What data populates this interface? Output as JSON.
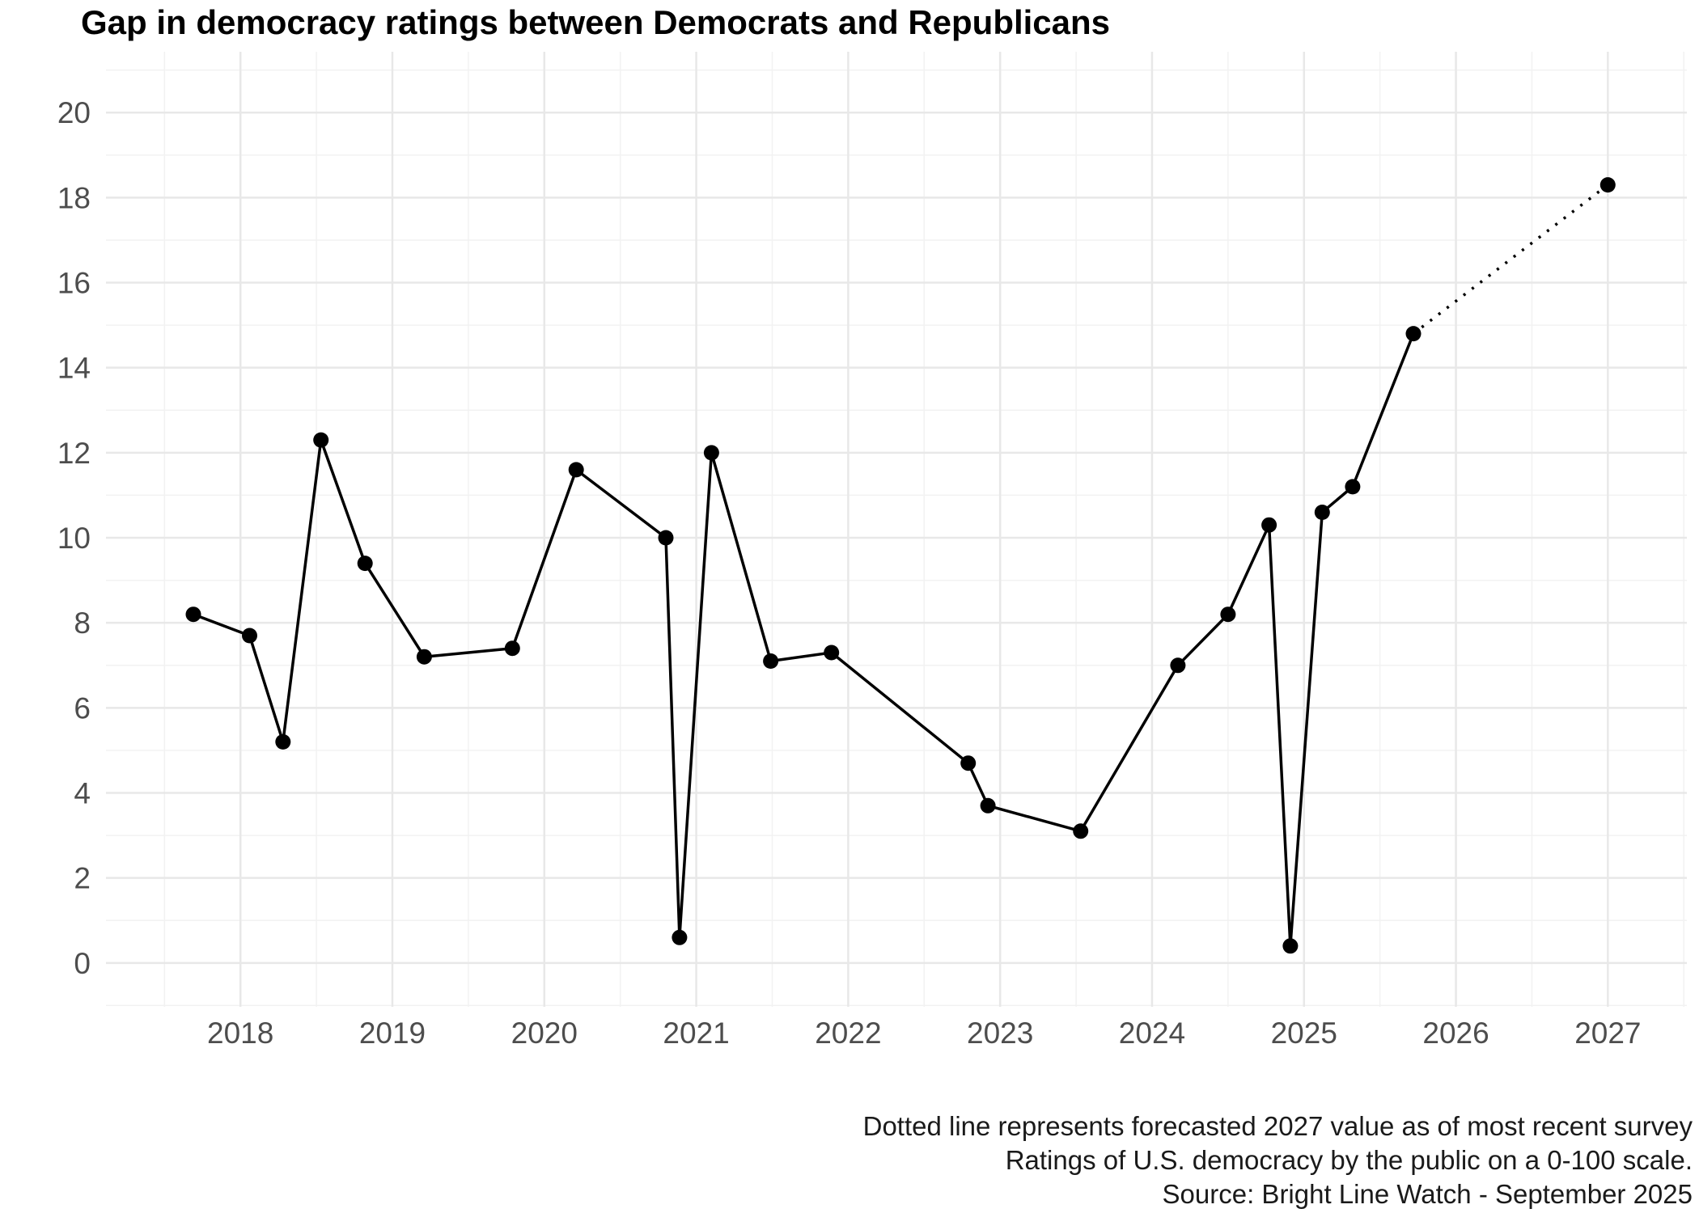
{
  "title": "Gap in democracy ratings between Democrats and Republicans",
  "caption": {
    "lines": [
      "Dotted line represents forecasted 2027 value as of most recent survey",
      "Ratings of U.S. democracy by the public on a 0-100 scale.",
      "Source: Bright Line Watch - September 2025"
    ]
  },
  "colors": {
    "background": "#ffffff",
    "line": "#000000",
    "point": "#000000",
    "grid_major": "#e8e8e8",
    "grid_minor": "#f2f2f2",
    "axis_text": "#4d4d4d",
    "title_text": "#000000",
    "caption_text": "#1a1a1a"
  },
  "chart_data": {
    "type": "line",
    "title": "Gap in democracy ratings between Democrats and Republicans",
    "xlabel": "",
    "ylabel": "",
    "x_domain": [
      2017.115,
      2027.52
    ],
    "y_domain": [
      -1.03,
      21.43
    ],
    "x_ticks": [
      2018,
      2019,
      2020,
      2021,
      2022,
      2023,
      2024,
      2025,
      2026,
      2027
    ],
    "y_ticks": [
      0,
      2,
      4,
      6,
      8,
      10,
      12,
      14,
      16,
      18,
      20
    ],
    "grid": "major-and-minor",
    "legend_position": "none",
    "series": [
      {
        "name": "observed-gap",
        "style": "solid",
        "points": [
          [
            2017.69,
            8.2
          ],
          [
            2018.06,
            7.7
          ],
          [
            2018.28,
            5.2
          ],
          [
            2018.53,
            12.3
          ],
          [
            2018.82,
            9.4
          ],
          [
            2019.21,
            7.2
          ],
          [
            2019.79,
            7.4
          ],
          [
            2020.21,
            11.6
          ],
          [
            2020.8,
            10.0
          ],
          [
            2020.89,
            0.6
          ],
          [
            2021.1,
            12.0
          ],
          [
            2021.49,
            7.1
          ],
          [
            2021.89,
            7.3
          ],
          [
            2022.79,
            4.7
          ],
          [
            2022.92,
            3.7
          ],
          [
            2023.53,
            3.1
          ],
          [
            2024.17,
            7.0
          ],
          [
            2024.5,
            8.2
          ],
          [
            2024.77,
            10.3
          ],
          [
            2024.91,
            0.4
          ],
          [
            2025.12,
            10.6
          ],
          [
            2025.32,
            11.2
          ],
          [
            2025.72,
            14.8
          ]
        ]
      },
      {
        "name": "forecast-gap",
        "style": "dotted",
        "points": [
          [
            2025.72,
            14.8
          ],
          [
            2027.0,
            18.3
          ]
        ]
      }
    ]
  }
}
